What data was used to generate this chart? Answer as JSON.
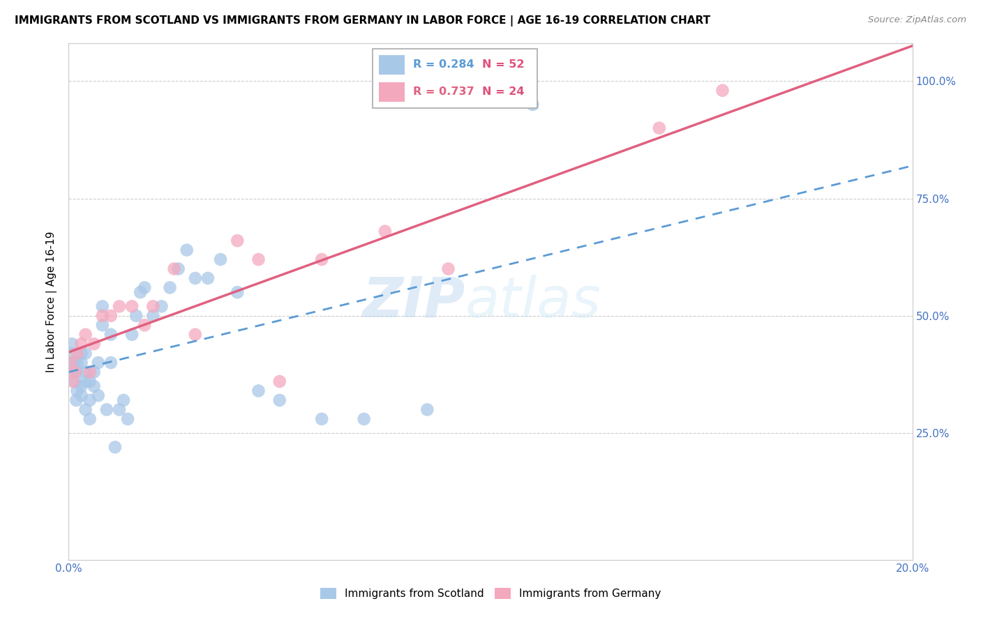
{
  "title": "IMMIGRANTS FROM SCOTLAND VS IMMIGRANTS FROM GERMANY IN LABOR FORCE | AGE 16-19 CORRELATION CHART",
  "source": "Source: ZipAtlas.com",
  "ylabel": "In Labor Force | Age 16-19",
  "xlim": [
    0.0,
    0.2
  ],
  "ylim": [
    -0.02,
    1.08
  ],
  "xtick_positions": [
    0.0,
    0.025,
    0.05,
    0.075,
    0.1,
    0.125,
    0.15,
    0.175,
    0.2
  ],
  "xticklabels": [
    "0.0%",
    "",
    "",
    "",
    "",
    "",
    "",
    "",
    "20.0%"
  ],
  "ytick_positions": [
    0.25,
    0.5,
    0.75,
    1.0
  ],
  "yticklabels": [
    "25.0%",
    "50.0%",
    "75.0%",
    "100.0%"
  ],
  "scotland_color": "#a8c8e8",
  "germany_color": "#f4a8be",
  "scotland_line_color": "#5b9bd5",
  "germany_line_color": "#e06080",
  "legend_R_scotland": "R = 0.284",
  "legend_N_scotland": "N = 52",
  "legend_R_germany": "R = 0.737",
  "legend_N_germany": "N = 24",
  "watermark_zip": "ZIP",
  "watermark_atlas": "atlas",
  "scotland_x": [
    0.0005,
    0.0008,
    0.001,
    0.0012,
    0.0015,
    0.0018,
    0.002,
    0.002,
    0.002,
    0.003,
    0.003,
    0.003,
    0.003,
    0.004,
    0.004,
    0.004,
    0.004,
    0.005,
    0.005,
    0.005,
    0.006,
    0.006,
    0.007,
    0.007,
    0.008,
    0.008,
    0.009,
    0.01,
    0.01,
    0.011,
    0.012,
    0.013,
    0.014,
    0.015,
    0.016,
    0.017,
    0.018,
    0.02,
    0.022,
    0.024,
    0.026,
    0.028,
    0.03,
    0.033,
    0.036,
    0.04,
    0.045,
    0.05,
    0.06,
    0.07,
    0.085,
    0.11
  ],
  "scotland_y": [
    0.42,
    0.44,
    0.38,
    0.4,
    0.36,
    0.32,
    0.34,
    0.38,
    0.4,
    0.33,
    0.35,
    0.4,
    0.42,
    0.3,
    0.36,
    0.38,
    0.42,
    0.28,
    0.32,
    0.36,
    0.35,
    0.38,
    0.33,
    0.4,
    0.48,
    0.52,
    0.3,
    0.4,
    0.46,
    0.22,
    0.3,
    0.32,
    0.28,
    0.46,
    0.5,
    0.55,
    0.56,
    0.5,
    0.52,
    0.56,
    0.6,
    0.64,
    0.58,
    0.58,
    0.62,
    0.55,
    0.34,
    0.32,
    0.28,
    0.28,
    0.3,
    0.95
  ],
  "germany_x": [
    0.0005,
    0.001,
    0.0015,
    0.002,
    0.003,
    0.004,
    0.005,
    0.006,
    0.008,
    0.01,
    0.012,
    0.015,
    0.018,
    0.02,
    0.025,
    0.03,
    0.04,
    0.045,
    0.05,
    0.06,
    0.075,
    0.09,
    0.14,
    0.155
  ],
  "germany_y": [
    0.4,
    0.36,
    0.38,
    0.42,
    0.44,
    0.46,
    0.38,
    0.44,
    0.5,
    0.5,
    0.52,
    0.52,
    0.48,
    0.52,
    0.6,
    0.46,
    0.66,
    0.62,
    0.36,
    0.62,
    0.68,
    0.6,
    0.9,
    0.98
  ]
}
